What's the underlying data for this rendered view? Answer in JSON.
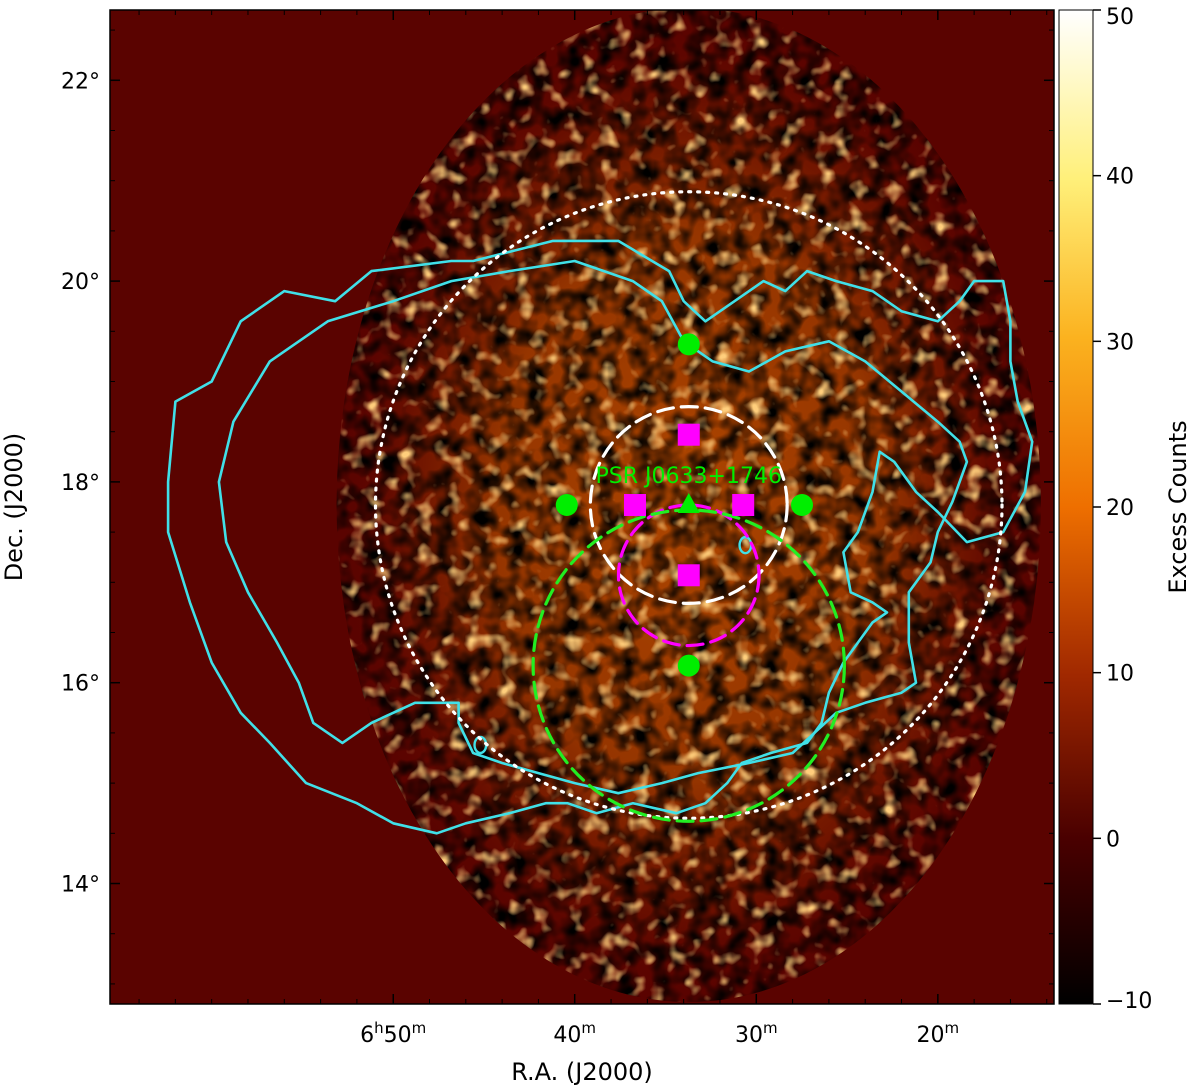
{
  "chart_data": {
    "type": "heatmap",
    "title": "",
    "xlabel": "R.A. (J2000)",
    "ylabel": "Dec. (J2000)",
    "colorbar": {
      "label": "Excess Counts",
      "range": [
        -10,
        50
      ],
      "ticks": [
        -10,
        0,
        10,
        20,
        30,
        40,
        50
      ],
      "colormap": "afmhot"
    },
    "x_ticks": [
      {
        "value": 6.8333,
        "main": "6",
        "sup1": "h",
        "mid": "50",
        "sup2": "m"
      },
      {
        "value": 6.6667,
        "main": "40",
        "sup1": "m",
        "mid": "",
        "sup2": ""
      },
      {
        "value": 6.5,
        "main": "30",
        "sup1": "m",
        "mid": "",
        "sup2": ""
      },
      {
        "value": 6.3333,
        "main": "20",
        "sup1": "m",
        "mid": "",
        "sup2": ""
      }
    ],
    "y_ticks": [
      {
        "value": 22,
        "label": "22°"
      },
      {
        "value": 20,
        "label": "20°"
      },
      {
        "value": 18,
        "label": "18°"
      },
      {
        "value": 16,
        "label": "16°"
      },
      {
        "value": 14,
        "label": "14°"
      }
    ],
    "xlim_deg_ra": [
      106.4,
      93.4
    ],
    "ylim_dec": [
      12.8,
      22.7
    ],
    "map_center": {
      "ra_deg": 98.43,
      "dec": 17.77
    },
    "pulsar": {
      "name": "PSR J0633+1746",
      "ra_deg": 98.43,
      "dec": 17.77,
      "color": "#00ee00",
      "marker": "triangle"
    },
    "green_points": [
      {
        "ra_deg": 98.43,
        "dec": 19.37
      },
      {
        "ra_deg": 100.11,
        "dec": 17.77
      },
      {
        "ra_deg": 96.87,
        "dec": 17.77
      },
      {
        "ra_deg": 98.43,
        "dec": 16.17
      }
    ],
    "magenta_squares": [
      {
        "ra_deg": 98.43,
        "dec": 18.47
      },
      {
        "ra_deg": 99.17,
        "dec": 17.77
      },
      {
        "ra_deg": 97.68,
        "dec": 17.77
      },
      {
        "ra_deg": 98.43,
        "dec": 17.07
      }
    ],
    "regions": [
      {
        "style": "dotted",
        "color": "#ffffff",
        "ra_deg": 98.43,
        "dec": 17.77,
        "radius_deg": 3.12
      },
      {
        "style": "dashed",
        "color": "#ffffff",
        "ra_deg": 98.43,
        "dec": 17.77,
        "radius_deg": 0.98
      },
      {
        "style": "dashed",
        "color": "#ff00ff",
        "ra_deg": 98.43,
        "dec": 17.07,
        "radius_deg": 0.7
      },
      {
        "style": "dashed",
        "color": "#22ee22",
        "ra_deg": 98.43,
        "dec": 16.17,
        "radius_deg": 1.55
      }
    ],
    "contour_color": "#40e0e8",
    "contours": [
      [
        [
          105.6,
          18.0
        ],
        [
          105.5,
          18.8
        ],
        [
          105.0,
          19.0
        ],
        [
          104.6,
          19.6
        ],
        [
          104.0,
          19.9
        ],
        [
          103.3,
          19.8
        ],
        [
          102.8,
          20.1
        ],
        [
          101.7,
          20.2
        ],
        [
          101.4,
          20.2
        ],
        [
          100.3,
          20.4
        ],
        [
          99.4,
          20.4
        ],
        [
          98.7,
          20.1
        ],
        [
          98.5,
          19.8
        ],
        [
          98.2,
          19.6
        ],
        [
          97.8,
          19.8
        ],
        [
          97.4,
          20.0
        ],
        [
          97.1,
          19.9
        ],
        [
          96.8,
          20.1
        ],
        [
          96.4,
          20.0
        ],
        [
          95.9,
          19.9
        ],
        [
          95.5,
          19.7
        ],
        [
          95.0,
          19.6
        ],
        [
          94.7,
          19.8
        ],
        [
          94.5,
          20.0
        ],
        [
          94.1,
          20.0
        ],
        [
          94.0,
          19.6
        ],
        [
          94.0,
          19.2
        ],
        [
          93.9,
          18.8
        ],
        [
          93.7,
          18.4
        ],
        [
          93.8,
          17.9
        ],
        [
          94.1,
          17.5
        ],
        [
          94.6,
          17.4
        ],
        [
          95.0,
          17.7
        ],
        [
          95.3,
          17.9
        ],
        [
          95.6,
          18.2
        ],
        [
          95.8,
          18.3
        ],
        [
          95.9,
          17.9
        ],
        [
          96.1,
          17.5
        ],
        [
          96.3,
          17.3
        ],
        [
          96.2,
          16.9
        ],
        [
          95.9,
          16.8
        ],
        [
          95.7,
          16.7
        ],
        [
          95.9,
          16.6
        ],
        [
          96.3,
          16.2
        ],
        [
          96.5,
          15.9
        ],
        [
          96.6,
          15.6
        ],
        [
          96.8,
          15.4
        ],
        [
          97.3,
          15.3
        ],
        [
          97.7,
          15.2
        ],
        [
          97.9,
          15.0
        ],
        [
          98.2,
          14.8
        ],
        [
          98.6,
          14.7
        ],
        [
          99.2,
          14.8
        ],
        [
          99.7,
          14.7
        ],
        [
          100.1,
          14.8
        ],
        [
          100.4,
          14.8
        ],
        [
          100.9,
          14.7
        ],
        [
          101.5,
          14.6
        ],
        [
          101.9,
          14.5
        ],
        [
          102.5,
          14.6
        ],
        [
          103.0,
          14.8
        ],
        [
          103.7,
          15.0
        ],
        [
          104.2,
          15.4
        ],
        [
          104.6,
          15.7
        ],
        [
          105.0,
          16.2
        ],
        [
          105.3,
          16.8
        ],
        [
          105.6,
          17.5
        ],
        [
          105.6,
          18.0
        ]
      ],
      [
        [
          104.9,
          18.0
        ],
        [
          104.7,
          18.6
        ],
        [
          104.2,
          19.2
        ],
        [
          103.4,
          19.6
        ],
        [
          102.5,
          19.8
        ],
        [
          101.7,
          20.0
        ],
        [
          100.9,
          20.1
        ],
        [
          100.0,
          20.2
        ],
        [
          99.2,
          20.0
        ],
        [
          98.8,
          19.8
        ],
        [
          98.5,
          19.4
        ],
        [
          98.1,
          19.2
        ],
        [
          97.6,
          19.1
        ],
        [
          97.1,
          19.3
        ],
        [
          96.5,
          19.4
        ],
        [
          96.0,
          19.2
        ],
        [
          95.5,
          18.9
        ],
        [
          95.0,
          18.6
        ],
        [
          94.7,
          18.4
        ],
        [
          94.6,
          18.2
        ],
        [
          94.8,
          17.8
        ],
        [
          95.0,
          17.5
        ],
        [
          95.1,
          17.2
        ],
        [
          95.4,
          16.9
        ],
        [
          95.4,
          16.4
        ],
        [
          95.3,
          16.0
        ],
        [
          95.5,
          15.9
        ],
        [
          96.0,
          15.8
        ],
        [
          96.4,
          15.7
        ],
        [
          96.7,
          15.5
        ],
        [
          97.0,
          15.3
        ],
        [
          97.6,
          15.2
        ],
        [
          98.3,
          15.1
        ],
        [
          98.8,
          15.0
        ],
        [
          99.4,
          14.9
        ],
        [
          100.0,
          15.0
        ],
        [
          100.5,
          15.1
        ],
        [
          101.0,
          15.2
        ],
        [
          101.4,
          15.3
        ],
        [
          101.6,
          15.6
        ],
        [
          101.6,
          15.8
        ],
        [
          102.2,
          15.8
        ],
        [
          102.8,
          15.6
        ],
        [
          103.2,
          15.4
        ],
        [
          103.6,
          15.6
        ],
        [
          103.8,
          16.0
        ],
        [
          104.1,
          16.4
        ],
        [
          104.5,
          16.9
        ],
        [
          104.8,
          17.4
        ],
        [
          104.9,
          18.0
        ]
      ]
    ],
    "small_loops": [
      {
        "ra_deg": 101.3,
        "dec": 15.38,
        "r": 0.08
      },
      {
        "ra_deg": 97.65,
        "dec": 17.37,
        "r": 0.08
      }
    ]
  }
}
